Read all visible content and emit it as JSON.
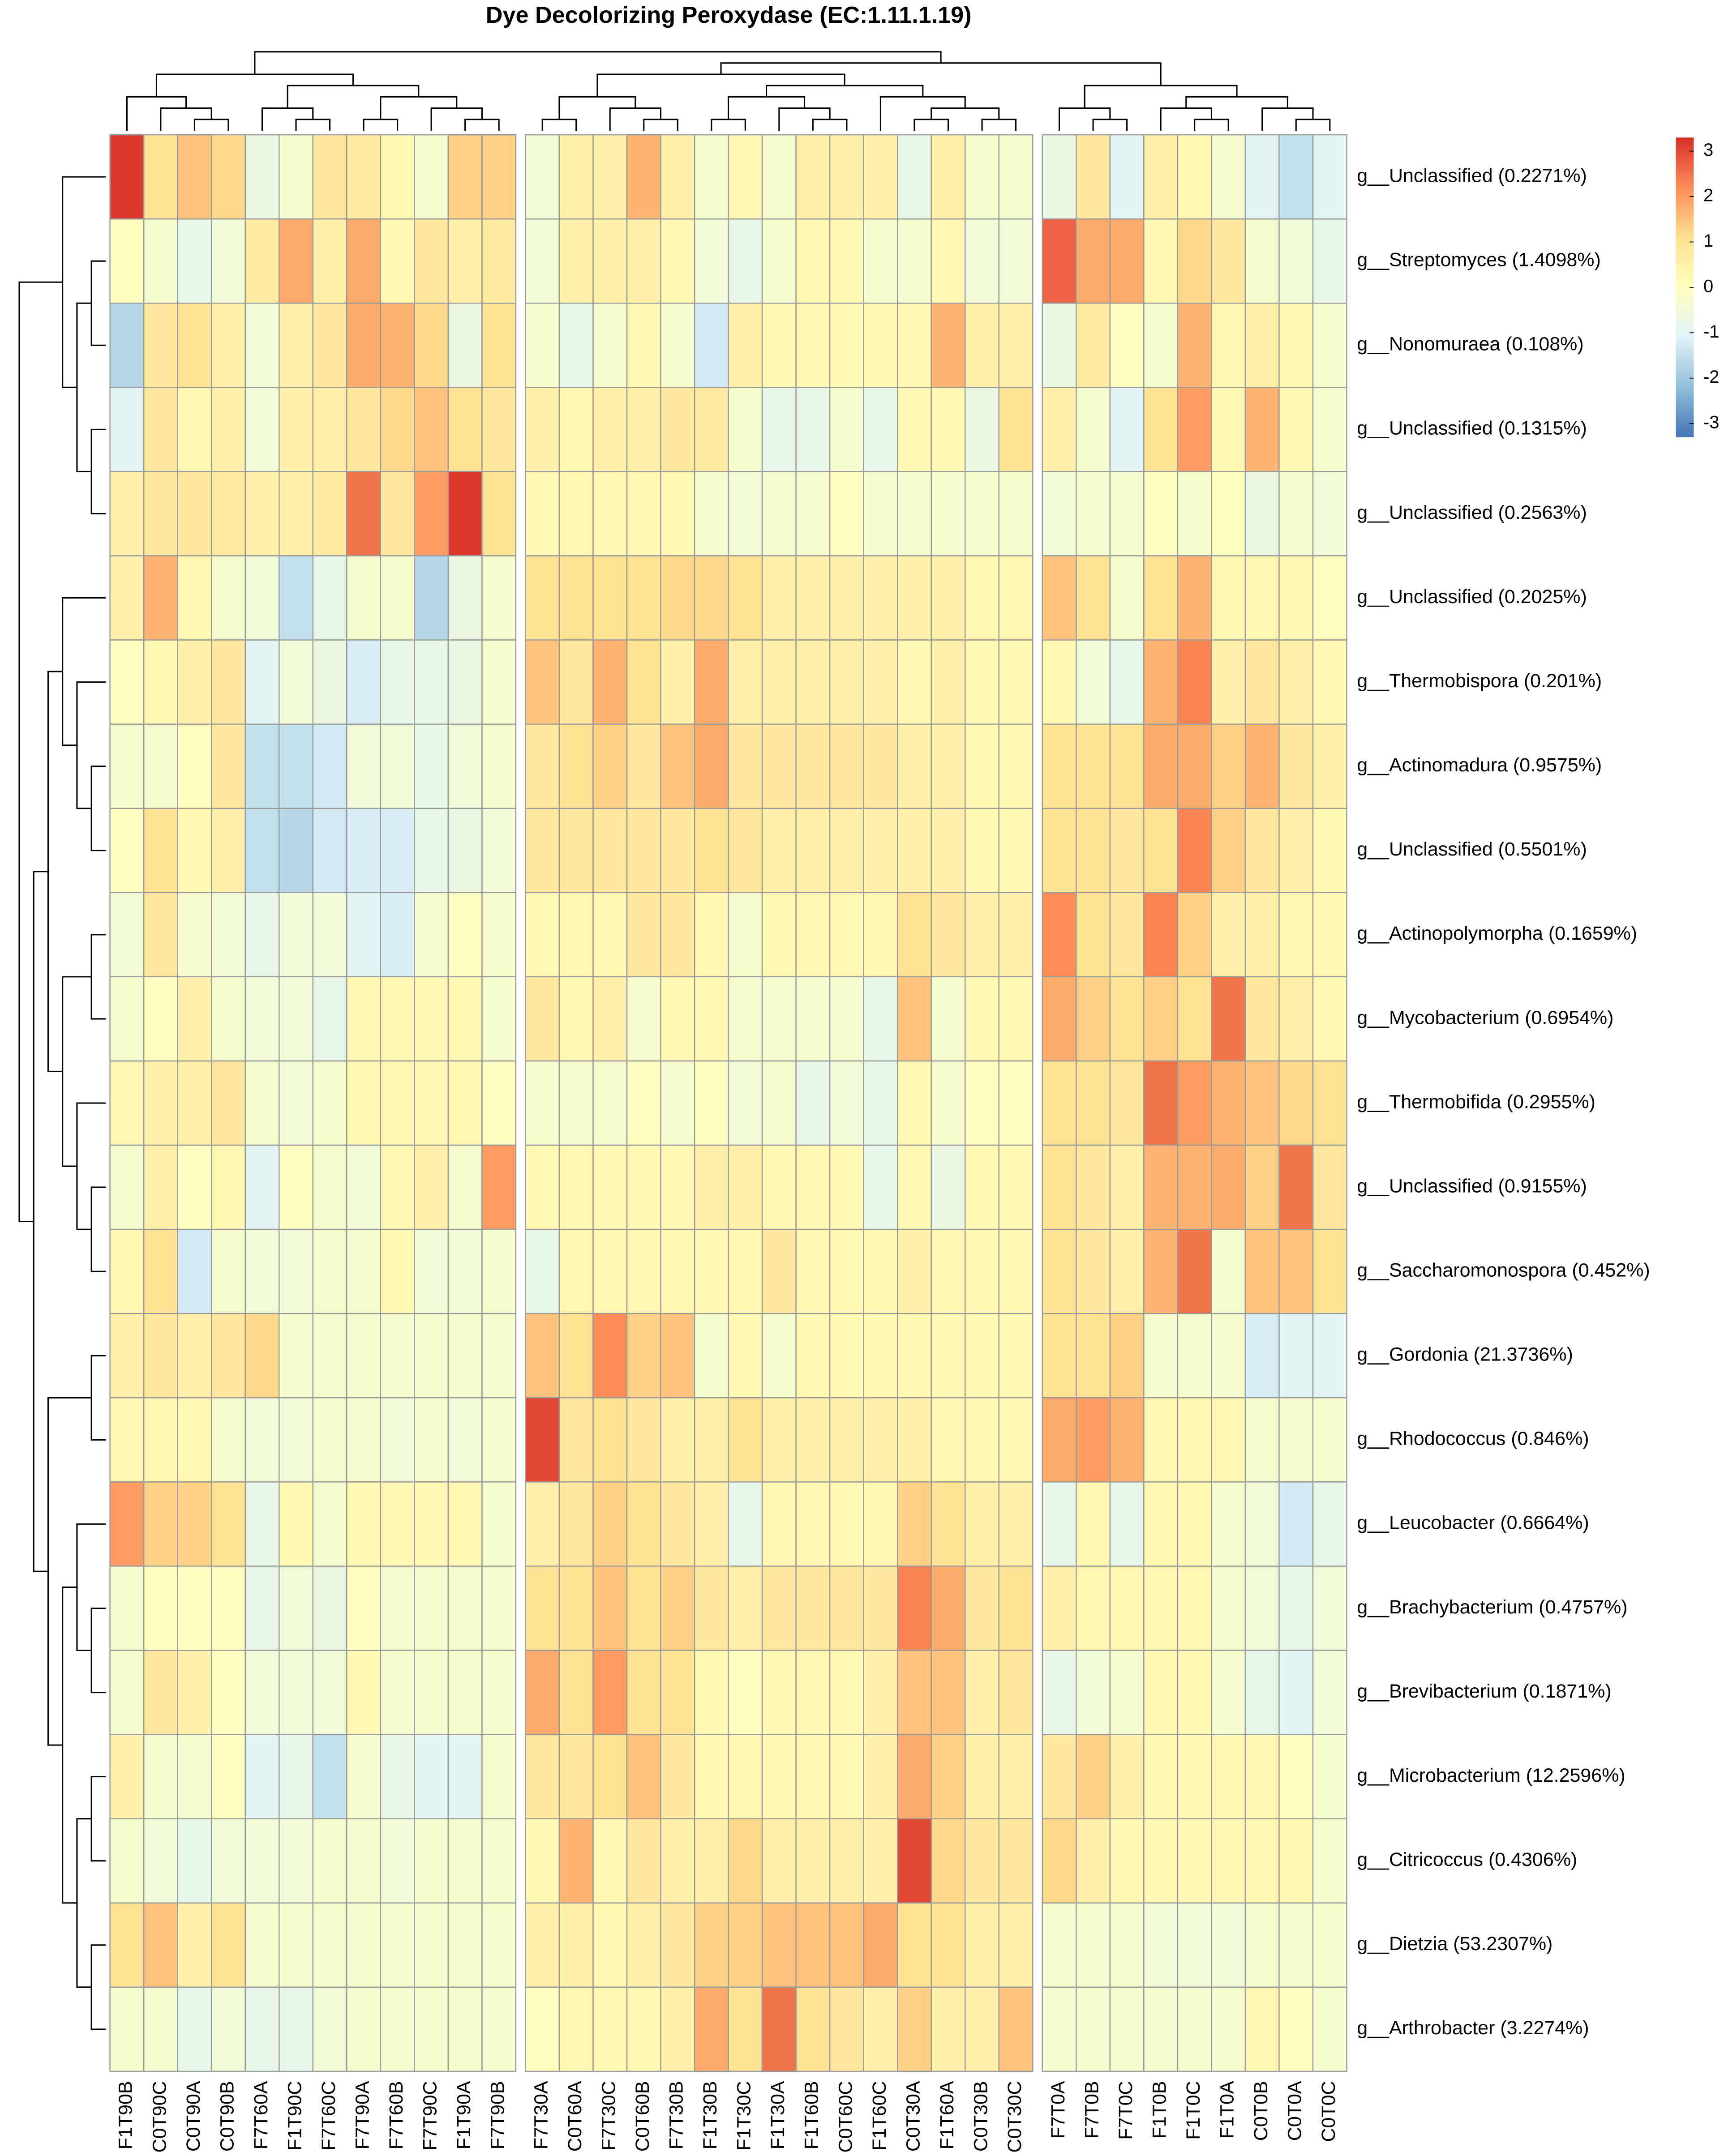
{
  "chart_data": {
    "type": "heatmap",
    "title": "Dye Decolorizing Peroxydase (EC:1.11.1.19)",
    "x_categories": [
      "F1T90B",
      "C0T90C",
      "C0T90A",
      "C0T90B",
      "F7T60A",
      "F1T90C",
      "F7T60C",
      "F7T90A",
      "F7T60B",
      "F7T90C",
      "F1T90A",
      "F7T90B",
      "F7T30A",
      "C0T60A",
      "F7T30C",
      "C0T60B",
      "F7T30B",
      "F1T30B",
      "F1T30C",
      "F1T30A",
      "F1T60B",
      "C0T60C",
      "F1T60C",
      "C0T30A",
      "F1T60A",
      "C0T30B",
      "C0T30C",
      "F7T0A",
      "F7T0B",
      "F7T0C",
      "F1T0B",
      "F1T0C",
      "F1T0A",
      "C0T0B",
      "C0T0A",
      "C0T0C"
    ],
    "y_categories": [
      "g__Unclassified (0.2271%)",
      "g__Streptomyces (1.4098%)",
      "g__Nonomuraea (0.108%)",
      "g__Unclassified (0.1315%)",
      "g__Unclassified (0.2563%)",
      "g__Unclassified (0.2025%)",
      "g__Thermobispora (0.201%)",
      "g__Actinomadura (0.9575%)",
      "g__Unclassified (0.5501%)",
      "g__Actinopolymorpha (0.1659%)",
      "g__Mycobacterium (0.6954%)",
      "g__Thermobifida (0.2955%)",
      "g__Unclassified (0.9155%)",
      "g__Saccharomonospora (0.452%)",
      "g__Gordonia (21.3736%)",
      "g__Rhodococcus (0.846%)",
      "g__Leucobacter (0.6664%)",
      "g__Brachybacterium (0.4757%)",
      "g__Brevibacterium (0.1871%)",
      "g__Microbacterium (12.2596%)",
      "g__Citricoccus (0.4306%)",
      "g__Dietzia (53.2307%)",
      "g__Arthrobacter (3.2274%)"
    ],
    "values": [
      [
        3.2,
        1,
        1.5,
        1.2,
        -0.7,
        -0.3,
        0.8,
        0.7,
        0.3,
        -0.3,
        1.3,
        1.3,
        -0.5,
        0.5,
        0.5,
        1.7,
        0.5,
        -0.3,
        0.3,
        -0.3,
        0.5,
        0.5,
        0.5,
        -0.8,
        0.5,
        -0.3,
        -0.3,
        -0.7,
        0.8,
        -1,
        0.5,
        0.3,
        -0.3,
        -1,
        -1.5,
        -1
      ],
      [
        0,
        -0.3,
        -0.8,
        -0.5,
        0.7,
        1.8,
        0.5,
        1.8,
        0.3,
        0.8,
        0.5,
        0.7,
        -0.5,
        0.5,
        0.5,
        0.5,
        0.3,
        -0.5,
        -0.8,
        -0.3,
        0.3,
        0.3,
        -0.3,
        -0.3,
        0.3,
        -0.5,
        -0.5,
        2.7,
        1.8,
        1.8,
        0.3,
        1.2,
        0.8,
        -0.3,
        -0.5,
        -0.8
      ],
      [
        -1.7,
        0.8,
        1,
        0.5,
        -0.5,
        0.5,
        0.8,
        1.8,
        1.7,
        1.2,
        -0.7,
        1,
        -0.3,
        -0.8,
        -0.3,
        0.3,
        -0.3,
        -1.3,
        0.5,
        0.3,
        0.3,
        0.3,
        0.3,
        0.3,
        1.7,
        0.5,
        0.5,
        -0.7,
        0.7,
        0,
        -0.3,
        1.7,
        0.3,
        0.5,
        0.3,
        -0.3
      ],
      [
        -1,
        0.8,
        0.3,
        0.5,
        -0.5,
        0.5,
        0.5,
        0.8,
        1.2,
        1.5,
        1,
        0.8,
        0.5,
        0.3,
        0.5,
        0.5,
        0.8,
        0.7,
        -0.3,
        -0.8,
        -0.8,
        -0.3,
        -0.8,
        0.3,
        0.3,
        -0.7,
        1,
        0.5,
        -0.3,
        -1,
        1,
        2,
        0.3,
        1.7,
        0.3,
        -0.3
      ],
      [
        0.5,
        0.8,
        0.8,
        0.7,
        0.5,
        0.5,
        0.7,
        2.5,
        0.8,
        2,
        3.2,
        1,
        0.3,
        0.3,
        0.3,
        0.3,
        0.3,
        -0.3,
        -0.5,
        -0.3,
        -0.3,
        0,
        -0.3,
        -0.3,
        -0.3,
        -0.3,
        -0.3,
        -0.5,
        -0.3,
        -0.3,
        0,
        -0.3,
        0,
        -0.7,
        -0.3,
        -0.5
      ],
      [
        0.5,
        1.7,
        0.3,
        -0.3,
        -0.5,
        -1.5,
        -0.8,
        -0.3,
        -0.3,
        -1.7,
        -0.7,
        -0.3,
        1,
        1,
        1,
        1,
        1.2,
        1.2,
        1,
        0.5,
        0.5,
        0.5,
        0.5,
        0.5,
        0.5,
        0.3,
        0.3,
        1.5,
        1,
        -0.3,
        1,
        1.7,
        0.3,
        0.3,
        0.3,
        0
      ],
      [
        0,
        0.3,
        0.5,
        0.8,
        -1,
        -0.5,
        -0.7,
        -1.2,
        -0.8,
        -0.8,
        -0.7,
        -0.3,
        1.5,
        0.8,
        1.7,
        1,
        0.5,
        1.8,
        0.5,
        0.5,
        0.5,
        0.5,
        0.5,
        0.3,
        0.5,
        0.3,
        0.3,
        0.3,
        -0.5,
        -0.8,
        1.7,
        2.3,
        0.5,
        0.8,
        0.5,
        0.3
      ],
      [
        -0.3,
        -0.3,
        0,
        0.8,
        -1.5,
        -1.5,
        -1.3,
        -0.5,
        -0.5,
        -0.8,
        -0.5,
        -0.3,
        0.8,
        1,
        1.3,
        0.8,
        1.5,
        1.8,
        0.8,
        0.8,
        0.8,
        0.8,
        0.8,
        0.5,
        0.5,
        0.3,
        0.3,
        1,
        1,
        1,
        1.8,
        1.8,
        1.3,
        1.7,
        0.8,
        0.5
      ],
      [
        0,
        1,
        0.3,
        0.5,
        -1.5,
        -1.7,
        -1.3,
        -1.2,
        -1.2,
        -0.8,
        -0.7,
        -0.5,
        0.8,
        0.8,
        0.8,
        0.8,
        0.8,
        1,
        0.8,
        0.5,
        0.5,
        0.5,
        0.5,
        0.5,
        0.5,
        0.3,
        0.3,
        1,
        1,
        0.8,
        1,
        2.3,
        1.3,
        0.8,
        0.5,
        0.3
      ],
      [
        -0.5,
        0.8,
        -0.3,
        -0.5,
        -0.8,
        -0.5,
        -0.5,
        -1,
        -1.2,
        -0.3,
        0,
        -0.3,
        0.3,
        0.3,
        0.3,
        0.8,
        0.8,
        0.3,
        -0.3,
        0.3,
        0.3,
        0.3,
        0.3,
        1,
        0.8,
        0.5,
        0.5,
        2.2,
        1,
        0.8,
        2.3,
        1.3,
        0.5,
        0.5,
        0.3,
        0.3
      ],
      [
        -0.3,
        0,
        0.5,
        -0.3,
        -0.5,
        -0.5,
        -0.8,
        0.3,
        0.3,
        0.3,
        0.3,
        -0.3,
        0.8,
        0.3,
        0.5,
        -0.3,
        0.3,
        0.3,
        -0.3,
        -0.3,
        -0.3,
        -0.3,
        -0.8,
        1.5,
        -0.3,
        0.3,
        0.3,
        1.8,
        1.3,
        1,
        1.3,
        1,
        2.5,
        0.8,
        0.5,
        0.3
      ],
      [
        0.3,
        0.5,
        0.5,
        0.8,
        -0.3,
        -0.5,
        -0.3,
        0.3,
        0.3,
        0.3,
        0.3,
        0,
        -0.3,
        -0.3,
        -0.3,
        0,
        -0.3,
        0,
        -0.5,
        -0.3,
        -0.8,
        -0.5,
        -0.8,
        0.3,
        -0.3,
        0,
        0,
        1,
        1,
        0.8,
        2.5,
        2,
        1.7,
        1.5,
        1.2,
        1
      ],
      [
        -0.3,
        0.5,
        0,
        0.3,
        -1,
        0,
        -0.3,
        -0.5,
        0.3,
        0.5,
        -0.3,
        2,
        0.3,
        0.3,
        0.3,
        0.3,
        0.3,
        0.5,
        0.5,
        0.3,
        0.3,
        0.3,
        -0.8,
        0.3,
        -0.7,
        0.3,
        0.3,
        1,
        0.8,
        0.5,
        1.7,
        1.7,
        1.8,
        1.3,
        2.5,
        0.8
      ],
      [
        0.3,
        1,
        -1.3,
        -0.3,
        -0.5,
        -0.5,
        -0.3,
        -0.3,
        0.3,
        -0.5,
        -0.5,
        -0.3,
        -0.8,
        0.3,
        0.3,
        0.3,
        0.3,
        0.3,
        0.3,
        0.8,
        0.3,
        0.3,
        0.3,
        0.5,
        0.3,
        0.3,
        0.3,
        1,
        0.8,
        0.5,
        1.7,
        2.5,
        -0.3,
        1.5,
        1.5,
        1
      ],
      [
        0.5,
        0.8,
        0.5,
        0.8,
        1.2,
        -0.3,
        -0.3,
        -0.3,
        -0.3,
        -0.3,
        -0.3,
        -0.3,
        1.5,
        1,
        2.2,
        1.3,
        1.5,
        -0.3,
        0.3,
        -0.3,
        0.3,
        0.3,
        0.3,
        0.3,
        0.3,
        0.3,
        0.3,
        1,
        1,
        1.3,
        -0.3,
        -0.3,
        -0.3,
        -1.2,
        -1,
        -1
      ],
      [
        0.3,
        0.3,
        0.3,
        -0.3,
        -0.5,
        -0.5,
        -0.3,
        -0.3,
        -0.5,
        -0.3,
        -0.5,
        -0.3,
        3,
        0.8,
        1,
        0.8,
        0.5,
        0.5,
        1,
        0.5,
        0.5,
        0.5,
        0.5,
        0.5,
        0.3,
        0.3,
        0.3,
        1.8,
        2,
        1.7,
        0.3,
        0.3,
        0.3,
        -0.3,
        -0.3,
        -0.3
      ],
      [
        2,
        1.3,
        1.3,
        1,
        -0.8,
        0.3,
        -0.3,
        0.3,
        0.3,
        0.3,
        0.3,
        -0.3,
        0.5,
        0.8,
        1.3,
        1,
        0.8,
        0.5,
        -0.8,
        0.3,
        0.3,
        0.3,
        0.3,
        1.3,
        1,
        0.5,
        0.5,
        -0.8,
        0.3,
        -0.8,
        0.3,
        0.3,
        -0.3,
        -0.5,
        -1.3,
        -0.8
      ],
      [
        -0.3,
        0,
        0,
        0,
        -0.8,
        -0.5,
        -0.7,
        0,
        -0.3,
        -0.3,
        -0.3,
        -0.3,
        1,
        1,
        1.5,
        1,
        1.3,
        0.8,
        0.5,
        0.8,
        0.8,
        0.8,
        0.8,
        2.3,
        1.8,
        0.8,
        1,
        0.5,
        0.3,
        0.3,
        0.3,
        0.3,
        -0.3,
        -0.5,
        -0.8,
        -0.5
      ],
      [
        -0.3,
        0.8,
        0.5,
        0,
        -0.5,
        -0.5,
        -0.5,
        0.3,
        -0.3,
        -0.3,
        -0.3,
        -0.3,
        1.8,
        1,
        2,
        1,
        1,
        0.3,
        0,
        0.3,
        0.3,
        0.3,
        0.5,
        1.5,
        1.5,
        0.5,
        0.8,
        -0.8,
        -0.5,
        -0.3,
        0.3,
        0.3,
        -0.3,
        -0.8,
        -1,
        -0.5
      ],
      [
        0.5,
        -0.3,
        -0.3,
        0,
        -1,
        -0.8,
        -1.5,
        -0.3,
        -0.8,
        -1,
        -1,
        -0.3,
        0.8,
        0.8,
        1,
        1.5,
        0.8,
        0.3,
        0.3,
        0.3,
        0.3,
        0.3,
        0.5,
        1.8,
        1.3,
        0.5,
        0.5,
        0.8,
        1.3,
        0.5,
        0.3,
        0.3,
        0.3,
        0.3,
        0,
        -0.3
      ],
      [
        -0.3,
        -0.5,
        -0.8,
        -0.5,
        -0.5,
        -0.5,
        -0.3,
        -0.3,
        -0.5,
        -0.3,
        -0.3,
        -0.3,
        0.3,
        1.7,
        0.3,
        0.8,
        0.5,
        0.5,
        1.2,
        0.5,
        0.5,
        0.5,
        0.5,
        3,
        1.2,
        0.8,
        0.8,
        1.2,
        0.5,
        0.3,
        0.3,
        0.3,
        0.3,
        0.3,
        0.3,
        -0.3
      ],
      [
        1,
        1.5,
        0.5,
        1,
        -0.3,
        -0.3,
        -0.3,
        -0.3,
        -0.3,
        -0.3,
        -0.3,
        -0.3,
        0.5,
        0.5,
        0.3,
        0.5,
        0.8,
        1.3,
        1.3,
        1.5,
        1.5,
        1.5,
        1.8,
        1,
        1,
        0.5,
        0.5,
        -0.3,
        -0.3,
        -0.3,
        -0.5,
        -0.5,
        -0.5,
        -0.3,
        -0.3,
        -0.3
      ],
      [
        -0.3,
        -0.3,
        -0.8,
        -0.5,
        -0.8,
        -0.8,
        -0.5,
        -0.3,
        -0.3,
        -0.3,
        -0.3,
        -0.3,
        0,
        0.3,
        0.3,
        0.3,
        0.5,
        1.8,
        1,
        2.5,
        1,
        0.8,
        0.5,
        1.3,
        0.5,
        0.5,
        1.5,
        -0.3,
        -0.3,
        -0.3,
        -0.3,
        -0.3,
        -0.3,
        0.3,
        0,
        -0.3
      ]
    ],
    "colors": [
      "#4575b4",
      "#91bfdb",
      "#e0f3f8",
      "#ffffbf",
      "#fee090",
      "#fc8d59",
      "#d73027"
    ],
    "zlim": [
      -3.3,
      3.3
    ],
    "zticks": [
      3,
      2,
      1,
      0,
      -1,
      -2,
      -3
    ]
  }
}
